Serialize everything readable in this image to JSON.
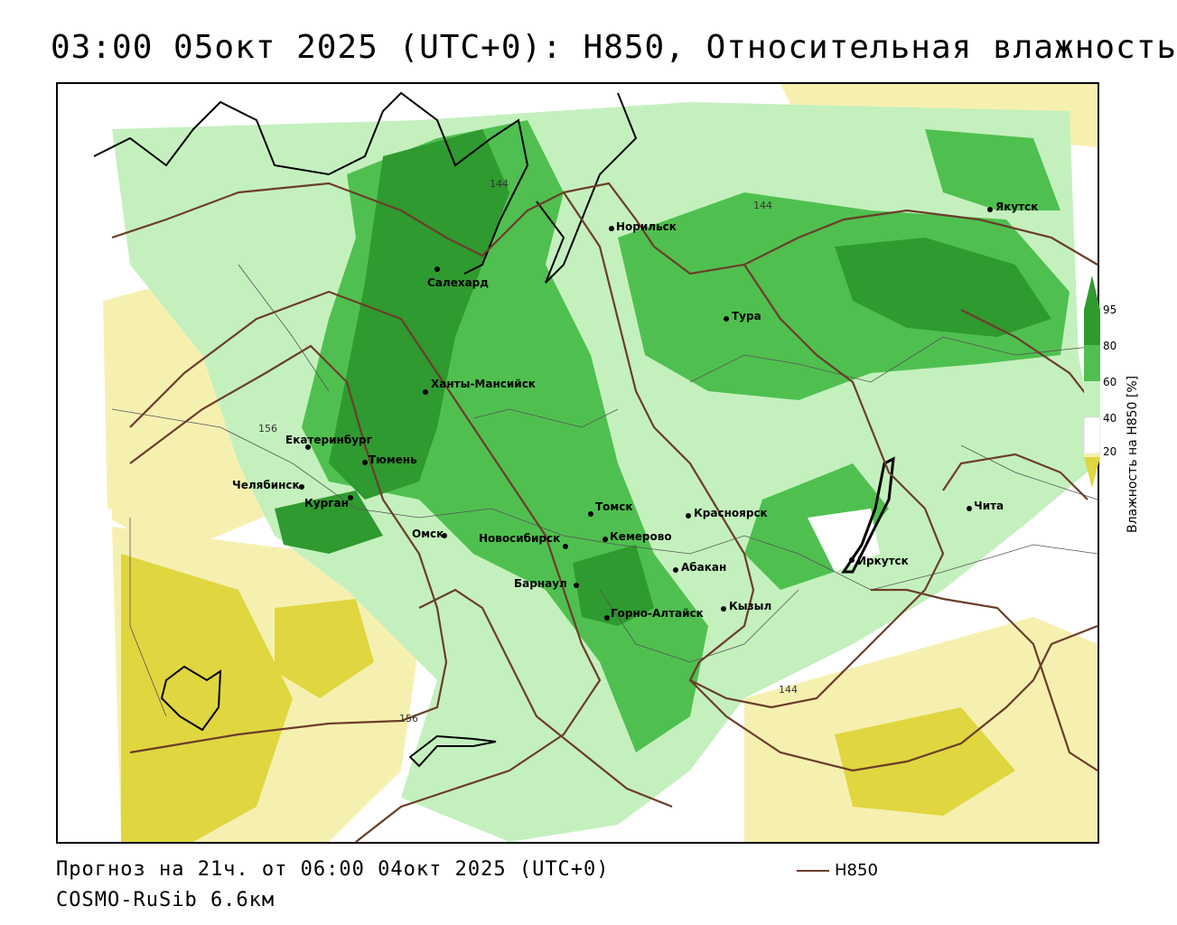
{
  "header": {
    "title": "03:00 05окт 2025 (UTC+0): H850, Относительная влажность"
  },
  "colors": {
    "green_dark": "#2f9a2f",
    "green_mid": "#4fc04f",
    "green_light": "#c4f0be",
    "yellow_light": "#f6f0b0",
    "yellow_dark": "#e0d640",
    "contour": "#6b3d2a"
  },
  "map": {
    "cities": [
      {
        "name": "Якутск"
      },
      {
        "name": "Норильск"
      },
      {
        "name": "Салехард"
      },
      {
        "name": "Тура"
      },
      {
        "name": "Ханты-Мансийск"
      },
      {
        "name": "Екатеринбург"
      },
      {
        "name": "Тюмень"
      },
      {
        "name": "Челябинск"
      },
      {
        "name": "Курган"
      },
      {
        "name": "Томск"
      },
      {
        "name": "Красноярск"
      },
      {
        "name": "Чита"
      },
      {
        "name": "Омск"
      },
      {
        "name": "Новосибирск"
      },
      {
        "name": "Кемерово"
      },
      {
        "name": "Абакан"
      },
      {
        "name": "Иркутск"
      },
      {
        "name": "Барнаул"
      },
      {
        "name": "Кызыл"
      },
      {
        "name": "Горно-Алтайск"
      }
    ],
    "contour_labels": [
      "144",
      "144",
      "144",
      "156",
      "156"
    ]
  },
  "colorbar": {
    "ticks": [
      "95",
      "80",
      "60",
      "40",
      "20"
    ],
    "title": "Влажность на H850 [%]"
  },
  "footer": {
    "forecast": "Прогноз на 21ч. от 06:00 04окт 2025 (UTC+0)",
    "model": "COSMO-RuSib 6.6км",
    "legend_label": "H850"
  }
}
